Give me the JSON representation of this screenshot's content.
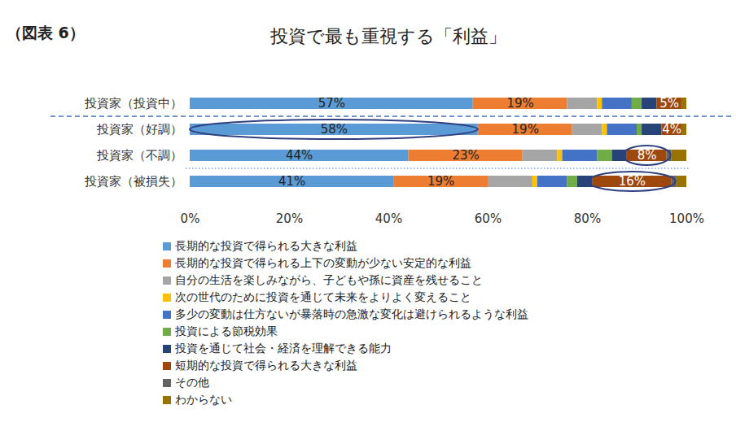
{
  "chart_data": {
    "type": "bar",
    "orientation": "horizontal",
    "stacked": true,
    "title": "投資で最も重視する「利益」",
    "annotations": [
      "（図表 6）"
    ],
    "categories": [
      "投資家（投資中）",
      "投資家（好調）",
      "投資家（不調）",
      "投資家（被損失）"
    ],
    "xlim": [
      0,
      100
    ],
    "xticks": [
      {
        "value": 0,
        "label": "0%"
      },
      {
        "value": 20,
        "label": "20%"
      },
      {
        "value": 40,
        "label": "40%"
      },
      {
        "value": 60,
        "label": "60%"
      },
      {
        "value": 80,
        "label": "80%"
      },
      {
        "value": 100,
        "label": "100%"
      }
    ],
    "grid": false,
    "legend": "bottom",
    "series": [
      {
        "name": "長期的な投資で得られる大きな利益",
        "color": "#5B9BD5",
        "values": [
          57,
          58,
          44,
          41
        ],
        "data_labels": true,
        "value_labels": [
          "57%",
          "58%",
          "44%",
          "41%"
        ]
      },
      {
        "name": "長期的な投資で得られる上下の変動が少ない安定的な利益",
        "color": "#ED7D31",
        "values": [
          19,
          19,
          23,
          19
        ],
        "data_labels": true,
        "value_labels": [
          "19%",
          "19%",
          "23%",
          "19%"
        ]
      },
      {
        "name": "自分の生活を楽しみながら、子どもや孫に資産を残せること",
        "color": "#A5A5A5",
        "values": [
          6,
          6,
          7,
          9
        ]
      },
      {
        "name": "次の世代のために投資を通じて未来をよりよく変えること",
        "color": "#FFC000",
        "values": [
          1,
          1,
          1,
          1
        ]
      },
      {
        "name": "多少の変動は仕方ないが暴落時の急激な変化は避けられるような利益",
        "color": "#4472C4",
        "values": [
          6,
          6,
          7,
          6
        ]
      },
      {
        "name": "投資による節税効果",
        "color": "#70AD47",
        "values": [
          2,
          1,
          3,
          2
        ]
      },
      {
        "name": "投資を通じて社会・経済を理解できる能力",
        "color": "#264478",
        "values": [
          3,
          4,
          3,
          3
        ]
      },
      {
        "name": "短期的な投資で得られる大きな利益",
        "color": "#9E480E",
        "values": [
          5,
          4,
          8,
          16
        ],
        "data_labels": true,
        "value_labels": [
          "5%",
          "4%",
          "8%",
          "16%"
        ]
      },
      {
        "name": "その他",
        "color": "#636363",
        "values": [
          0,
          0,
          1,
          1
        ]
      },
      {
        "name": "わからない",
        "color": "#997300",
        "values": [
          1,
          1,
          3,
          2
        ]
      }
    ]
  }
}
